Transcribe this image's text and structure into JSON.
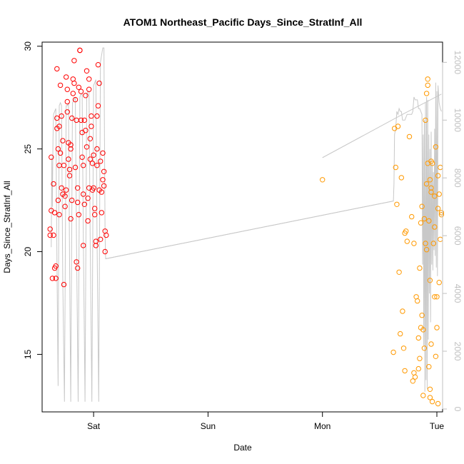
{
  "chart_data": {
    "type": "scatter",
    "title": "ATOM1 Northeast_Pacific Days_Since_StratInf_All",
    "xlabel": "Date",
    "ylabel": "Days_Since_StratInf_All",
    "x_unit": "days",
    "x_ticks": [
      {
        "x": 1.0,
        "label": "Sat"
      },
      {
        "x": 2.0,
        "label": "Sun"
      },
      {
        "x": 3.0,
        "label": "Mon"
      },
      {
        "x": 4.0,
        "label": "Tue"
      }
    ],
    "xlim": [
      0.55,
      4.05
    ],
    "ylim": [
      12.2,
      30.2
    ],
    "y_ticks": [
      15,
      20,
      25,
      30
    ],
    "y2lim": [
      -100,
      12700
    ],
    "y2_ticks": [
      0,
      2000,
      4000,
      6000,
      8000,
      10000,
      12000
    ],
    "grid": false,
    "colors": {
      "series_1": "#ff0000",
      "series_2": "#ff9900",
      "trace": "#c8c8c8",
      "axis_right": "#c0c0c0"
    },
    "series": [
      {
        "color": "#ff0000",
        "points": [
          [
            0.62,
            21.1
          ],
          [
            0.62,
            20.8
          ],
          [
            0.63,
            22.0
          ],
          [
            0.63,
            24.6
          ],
          [
            0.64,
            18.7
          ],
          [
            0.65,
            20.8
          ],
          [
            0.65,
            23.3
          ],
          [
            0.66,
            21.9
          ],
          [
            0.66,
            19.2
          ],
          [
            0.67,
            19.3
          ],
          [
            0.67,
            18.7
          ],
          [
            0.68,
            26.5
          ],
          [
            0.68,
            28.9
          ],
          [
            0.68,
            26.0
          ],
          [
            0.69,
            25.0
          ],
          [
            0.69,
            22.5
          ],
          [
            0.7,
            21.8
          ],
          [
            0.7,
            24.2
          ],
          [
            0.7,
            26.1
          ],
          [
            0.71,
            28.1
          ],
          [
            0.71,
            24.8
          ],
          [
            0.72,
            23.1
          ],
          [
            0.72,
            26.6
          ],
          [
            0.73,
            22.8
          ],
          [
            0.73,
            25.4
          ],
          [
            0.74,
            24.2
          ],
          [
            0.74,
            18.4
          ],
          [
            0.75,
            22.7
          ],
          [
            0.75,
            22.2
          ],
          [
            0.76,
            23.0
          ],
          [
            0.76,
            28.5
          ],
          [
            0.77,
            26.8
          ],
          [
            0.77,
            27.3
          ],
          [
            0.77,
            27.9
          ],
          [
            0.78,
            25.3
          ],
          [
            0.78,
            24.5
          ],
          [
            0.79,
            23.7
          ],
          [
            0.79,
            24.0
          ],
          [
            0.8,
            21.6
          ],
          [
            0.8,
            25.0
          ],
          [
            0.8,
            25.2
          ],
          [
            0.81,
            22.5
          ],
          [
            0.81,
            26.5
          ],
          [
            0.82,
            27.7
          ],
          [
            0.82,
            28.4
          ],
          [
            0.83,
            28.2
          ],
          [
            0.83,
            29.3
          ],
          [
            0.84,
            27.4
          ],
          [
            0.84,
            24.1
          ],
          [
            0.85,
            26.4
          ],
          [
            0.85,
            19.5
          ],
          [
            0.86,
            19.2
          ],
          [
            0.86,
            23.1
          ],
          [
            0.86,
            22.4
          ],
          [
            0.87,
            21.8
          ],
          [
            0.87,
            28.0
          ],
          [
            0.88,
            29.8
          ],
          [
            0.88,
            29.8
          ],
          [
            0.89,
            27.8
          ],
          [
            0.89,
            26.4
          ],
          [
            0.9,
            24.6
          ],
          [
            0.9,
            25.8
          ],
          [
            0.91,
            24.2
          ],
          [
            0.91,
            20.3
          ],
          [
            0.91,
            22.8
          ],
          [
            0.92,
            22.3
          ],
          [
            0.92,
            26.4
          ],
          [
            0.93,
            25.9
          ],
          [
            0.93,
            27.6
          ],
          [
            0.94,
            28.8
          ],
          [
            0.94,
            25.1
          ],
          [
            0.95,
            22.6
          ],
          [
            0.95,
            21.5
          ],
          [
            0.96,
            27.9
          ],
          [
            0.96,
            28.4
          ],
          [
            0.96,
            23.1
          ],
          [
            0.97,
            24.5
          ],
          [
            0.97,
            25.5
          ],
          [
            0.98,
            26.1
          ],
          [
            0.98,
            26.6
          ],
          [
            0.99,
            24.3
          ],
          [
            0.99,
            23.0
          ],
          [
            1.0,
            24.7
          ],
          [
            1.0,
            23.1
          ],
          [
            1.01,
            22.1
          ],
          [
            1.01,
            21.8
          ],
          [
            1.02,
            20.5
          ],
          [
            1.02,
            20.3
          ],
          [
            1.03,
            25.0
          ],
          [
            1.03,
            24.2
          ],
          [
            1.03,
            26.6
          ],
          [
            1.04,
            27.1
          ],
          [
            1.04,
            29.1
          ],
          [
            1.05,
            28.2
          ],
          [
            1.05,
            23.0
          ],
          [
            1.06,
            24.4
          ],
          [
            1.06,
            20.6
          ],
          [
            1.07,
            22.9
          ],
          [
            1.07,
            21.9
          ],
          [
            1.08,
            23.5
          ],
          [
            1.08,
            24.8
          ],
          [
            1.09,
            23.2
          ],
          [
            1.09,
            23.9
          ],
          [
            1.1,
            21.0
          ],
          [
            1.1,
            20.0
          ],
          [
            1.11,
            20.8
          ]
        ]
      },
      {
        "color": "#ff9900",
        "points": [
          [
            3.0,
            23.5
          ],
          [
            3.62,
            15.1
          ],
          [
            3.63,
            26.0
          ],
          [
            3.64,
            24.1
          ],
          [
            3.65,
            22.3
          ],
          [
            3.66,
            26.1
          ],
          [
            3.67,
            19.0
          ],
          [
            3.68,
            16.0
          ],
          [
            3.69,
            23.6
          ],
          [
            3.7,
            17.1
          ],
          [
            3.71,
            15.3
          ],
          [
            3.72,
            14.2
          ],
          [
            3.72,
            20.9
          ],
          [
            3.73,
            21.0
          ],
          [
            3.74,
            20.5
          ],
          [
            3.76,
            25.6
          ],
          [
            3.78,
            21.7
          ],
          [
            3.79,
            13.7
          ],
          [
            3.8,
            14.1
          ],
          [
            3.8,
            20.4
          ],
          [
            3.81,
            13.9
          ],
          [
            3.82,
            17.8
          ],
          [
            3.83,
            17.6
          ],
          [
            3.84,
            15.8
          ],
          [
            3.84,
            14.3
          ],
          [
            3.85,
            14.8
          ],
          [
            3.85,
            19.2
          ],
          [
            3.86,
            16.3
          ],
          [
            3.86,
            21.4
          ],
          [
            3.87,
            16.9
          ],
          [
            3.87,
            22.2
          ],
          [
            3.88,
            13.0
          ],
          [
            3.88,
            16.2
          ],
          [
            3.89,
            21.6
          ],
          [
            3.89,
            15.3
          ],
          [
            3.9,
            26.4
          ],
          [
            3.9,
            20.4
          ],
          [
            3.91,
            23.3
          ],
          [
            3.91,
            20.1
          ],
          [
            3.91,
            27.7
          ],
          [
            3.92,
            28.1
          ],
          [
            3.92,
            28.4
          ],
          [
            3.92,
            24.3
          ],
          [
            3.93,
            21.5
          ],
          [
            3.93,
            14.4
          ],
          [
            3.94,
            18.6
          ],
          [
            3.94,
            13.3
          ],
          [
            3.94,
            23.5
          ],
          [
            3.95,
            24.4
          ],
          [
            3.95,
            22.9
          ],
          [
            3.95,
            23.1
          ],
          [
            3.96,
            24.3
          ],
          [
            3.96,
            12.7
          ],
          [
            3.97,
            20.4
          ],
          [
            3.98,
            22.7
          ],
          [
            3.98,
            21.2
          ],
          [
            3.98,
            17.8
          ],
          [
            3.99,
            14.9
          ],
          [
            3.99,
            25.1
          ],
          [
            4.0,
            16.3
          ],
          [
            4.0,
            17.8
          ],
          [
            4.01,
            22.1
          ],
          [
            4.01,
            23.7
          ],
          [
            4.02,
            22.8
          ],
          [
            4.02,
            18.5
          ],
          [
            4.03,
            24.1
          ],
          [
            4.03,
            20.6
          ],
          [
            4.04,
            21.8
          ],
          [
            4.04,
            21.9
          ],
          [
            3.94,
            12.9
          ],
          [
            3.95,
            15.5
          ],
          [
            4.01,
            12.6
          ]
        ]
      }
    ],
    "trace": {
      "color": "#c8c8c8",
      "axis": "right",
      "points": [
        [
          0.63,
          5600
        ],
        [
          0.635,
          8700
        ],
        [
          0.64,
          7000
        ],
        [
          0.645,
          9300
        ],
        [
          0.65,
          10200
        ],
        [
          0.66,
          10300
        ],
        [
          0.67,
          10400
        ],
        [
          0.68,
          5000
        ],
        [
          0.69,
          800
        ],
        [
          0.7,
          10500
        ],
        [
          0.71,
          10600
        ],
        [
          0.72,
          10500
        ],
        [
          0.73,
          4500
        ],
        [
          0.745,
          250
        ],
        [
          0.76,
          10500
        ],
        [
          0.77,
          10500
        ],
        [
          0.78,
          10600
        ],
        [
          0.79,
          5000
        ],
        [
          0.8,
          250
        ],
        [
          0.815,
          10600
        ],
        [
          0.83,
          10700
        ],
        [
          0.84,
          10800
        ],
        [
          0.85,
          6000
        ],
        [
          0.865,
          250
        ],
        [
          0.88,
          10800
        ],
        [
          0.89,
          10900
        ],
        [
          0.9,
          10900
        ],
        [
          0.91,
          6000
        ],
        [
          0.925,
          250
        ],
        [
          0.94,
          10900
        ],
        [
          0.95,
          11000
        ],
        [
          0.96,
          11000
        ],
        [
          0.97,
          6000
        ],
        [
          0.985,
          250
        ],
        [
          1.0,
          11200
        ],
        [
          1.01,
          11300
        ],
        [
          1.02,
          11400
        ],
        [
          1.03,
          6000
        ],
        [
          1.045,
          250
        ],
        [
          1.06,
          12000
        ],
        [
          1.08,
          12500
        ],
        [
          1.09,
          12500
        ],
        [
          1.1,
          6000
        ],
        [
          1.105,
          5200
        ],
        [
          3.62,
          7200
        ],
        [
          3.625,
          7800
        ],
        [
          3.63,
          9500
        ],
        [
          3.64,
          9700
        ],
        [
          3.65,
          10300
        ],
        [
          3.66,
          10200
        ],
        [
          3.67,
          10400
        ],
        [
          3.68,
          10300
        ],
        [
          3.69,
          10300
        ],
        [
          3.7,
          10000
        ],
        [
          3.72,
          10000
        ],
        [
          3.74,
          10200
        ],
        [
          3.76,
          10200
        ],
        [
          3.78,
          10200
        ],
        [
          3.79,
          10300
        ],
        [
          3.8,
          10800
        ],
        [
          3.81,
          10700
        ],
        [
          3.82,
          10700
        ],
        [
          3.83,
          10700
        ],
        [
          3.84,
          10400
        ],
        [
          3.85,
          10400
        ],
        [
          3.86,
          10300
        ],
        [
          3.87,
          10200
        ],
        [
          3.875,
          5000
        ],
        [
          3.88,
          9500
        ],
        [
          3.885,
          2200
        ],
        [
          3.89,
          10000
        ],
        [
          3.895,
          600
        ],
        [
          3.9,
          10600
        ],
        [
          3.905,
          1000
        ],
        [
          3.91,
          10800
        ],
        [
          3.915,
          700
        ],
        [
          3.92,
          10700
        ],
        [
          3.925,
          2400
        ],
        [
          3.93,
          9500
        ],
        [
          3.935,
          4000
        ],
        [
          3.94,
          9000
        ],
        [
          3.945,
          3000
        ],
        [
          3.95,
          9600
        ],
        [
          3.955,
          5000
        ],
        [
          3.96,
          8500
        ],
        [
          3.965,
          4800
        ],
        [
          3.97,
          8200
        ],
        [
          3.975,
          5500
        ],
        [
          3.98,
          9700
        ],
        [
          3.985,
          5300
        ],
        [
          3.99,
          11300
        ],
        [
          3.995,
          4900
        ],
        [
          4.0,
          11000
        ],
        [
          4.005,
          4600
        ],
        [
          4.01,
          11200
        ],
        [
          4.02,
          10600
        ],
        [
          4.03,
          10400
        ],
        [
          4.04,
          10300
        ]
      ]
    },
    "trace_bridges": [
      {
        "from": [
          1.105,
          5200
        ],
        "to": [
          3.62,
          7200
        ]
      },
      {
        "from": [
          3.0,
          8700
        ],
        "to": [
          3.7,
          10200
        ]
      },
      {
        "from": [
          3.7,
          10200
        ],
        "to": [
          4.04,
          10900
        ]
      }
    ]
  }
}
